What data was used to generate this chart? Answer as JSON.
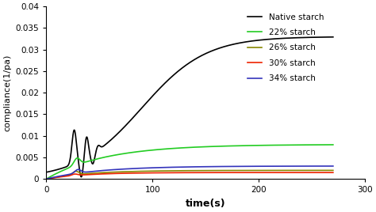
{
  "title": "",
  "xlabel": "time(s)",
  "ylabel": "compliance(1/pa)",
  "xlim": [
    0,
    300
  ],
  "ylim": [
    0,
    0.04
  ],
  "xticks": [
    0,
    100,
    200,
    300
  ],
  "yticks": [
    0,
    0.005,
    0.01,
    0.015,
    0.02,
    0.025,
    0.03,
    0.035,
    0.04
  ],
  "ytick_labels": [
    "0",
    "0.005",
    "0.01",
    "0.015",
    "0.02",
    "0.025",
    "0.03",
    "0.035",
    "0.04"
  ],
  "legend_entries": [
    "Native starch",
    "22% starch",
    "26% starch",
    "30% starch",
    "34% starch"
  ],
  "colors": [
    "#000000",
    "#22cc22",
    "#888800",
    "#ee2200",
    "#3333bb"
  ],
  "background_color": "#ffffff",
  "figsize": [
    4.74,
    2.68
  ],
  "dpi": 100
}
